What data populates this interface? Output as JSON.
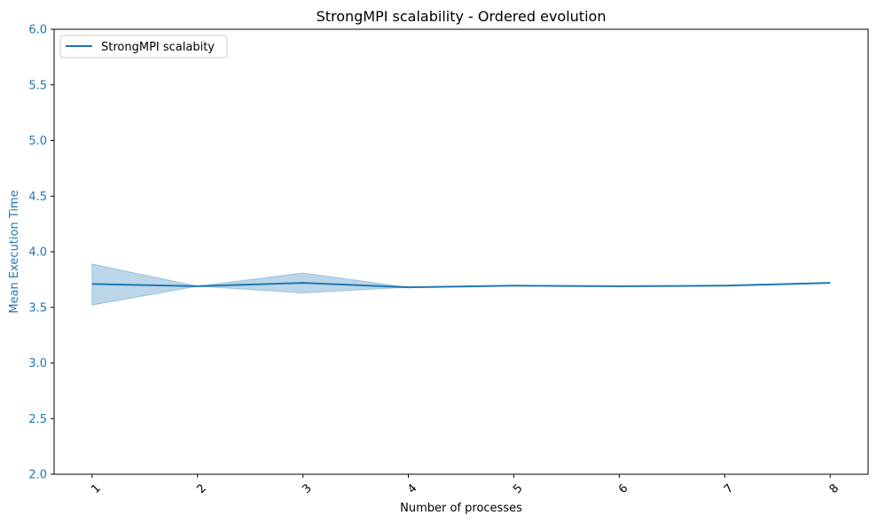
{
  "chart_data": {
    "type": "line",
    "title": "StrongMPI scalability - Ordered evolution",
    "xlabel": "Number of processes",
    "ylabel": "Mean Execution Time",
    "categories": [
      "1",
      "2",
      "3",
      "4",
      "5",
      "6",
      "7",
      "8"
    ],
    "x": [
      1,
      2,
      3,
      4,
      5,
      6,
      7,
      8
    ],
    "series": [
      {
        "name": "StrongMPI scalabity",
        "values": [
          3.71,
          3.69,
          3.72,
          3.68,
          3.695,
          3.69,
          3.695,
          3.72
        ],
        "band_upper": [
          3.89,
          3.69,
          3.81,
          3.68,
          3.695,
          3.69,
          3.695,
          3.72
        ],
        "band_lower": [
          3.52,
          3.69,
          3.63,
          3.68,
          3.695,
          3.69,
          3.695,
          3.72
        ]
      }
    ],
    "xlim": [
      0.64,
      8.36
    ],
    "ylim": [
      2.0,
      6.0
    ],
    "yticks": [
      "2.0",
      "2.5",
      "3.0",
      "3.5",
      "4.0",
      "4.5",
      "5.0",
      "5.5",
      "6.0"
    ],
    "xtick_rotation": "45",
    "legend_position": "top-left",
    "grid": false,
    "colors": {
      "line": "#1f77b4",
      "band": "#1f77b4",
      "ylabel_color": "#1f77b4",
      "axis": "#000000"
    }
  }
}
